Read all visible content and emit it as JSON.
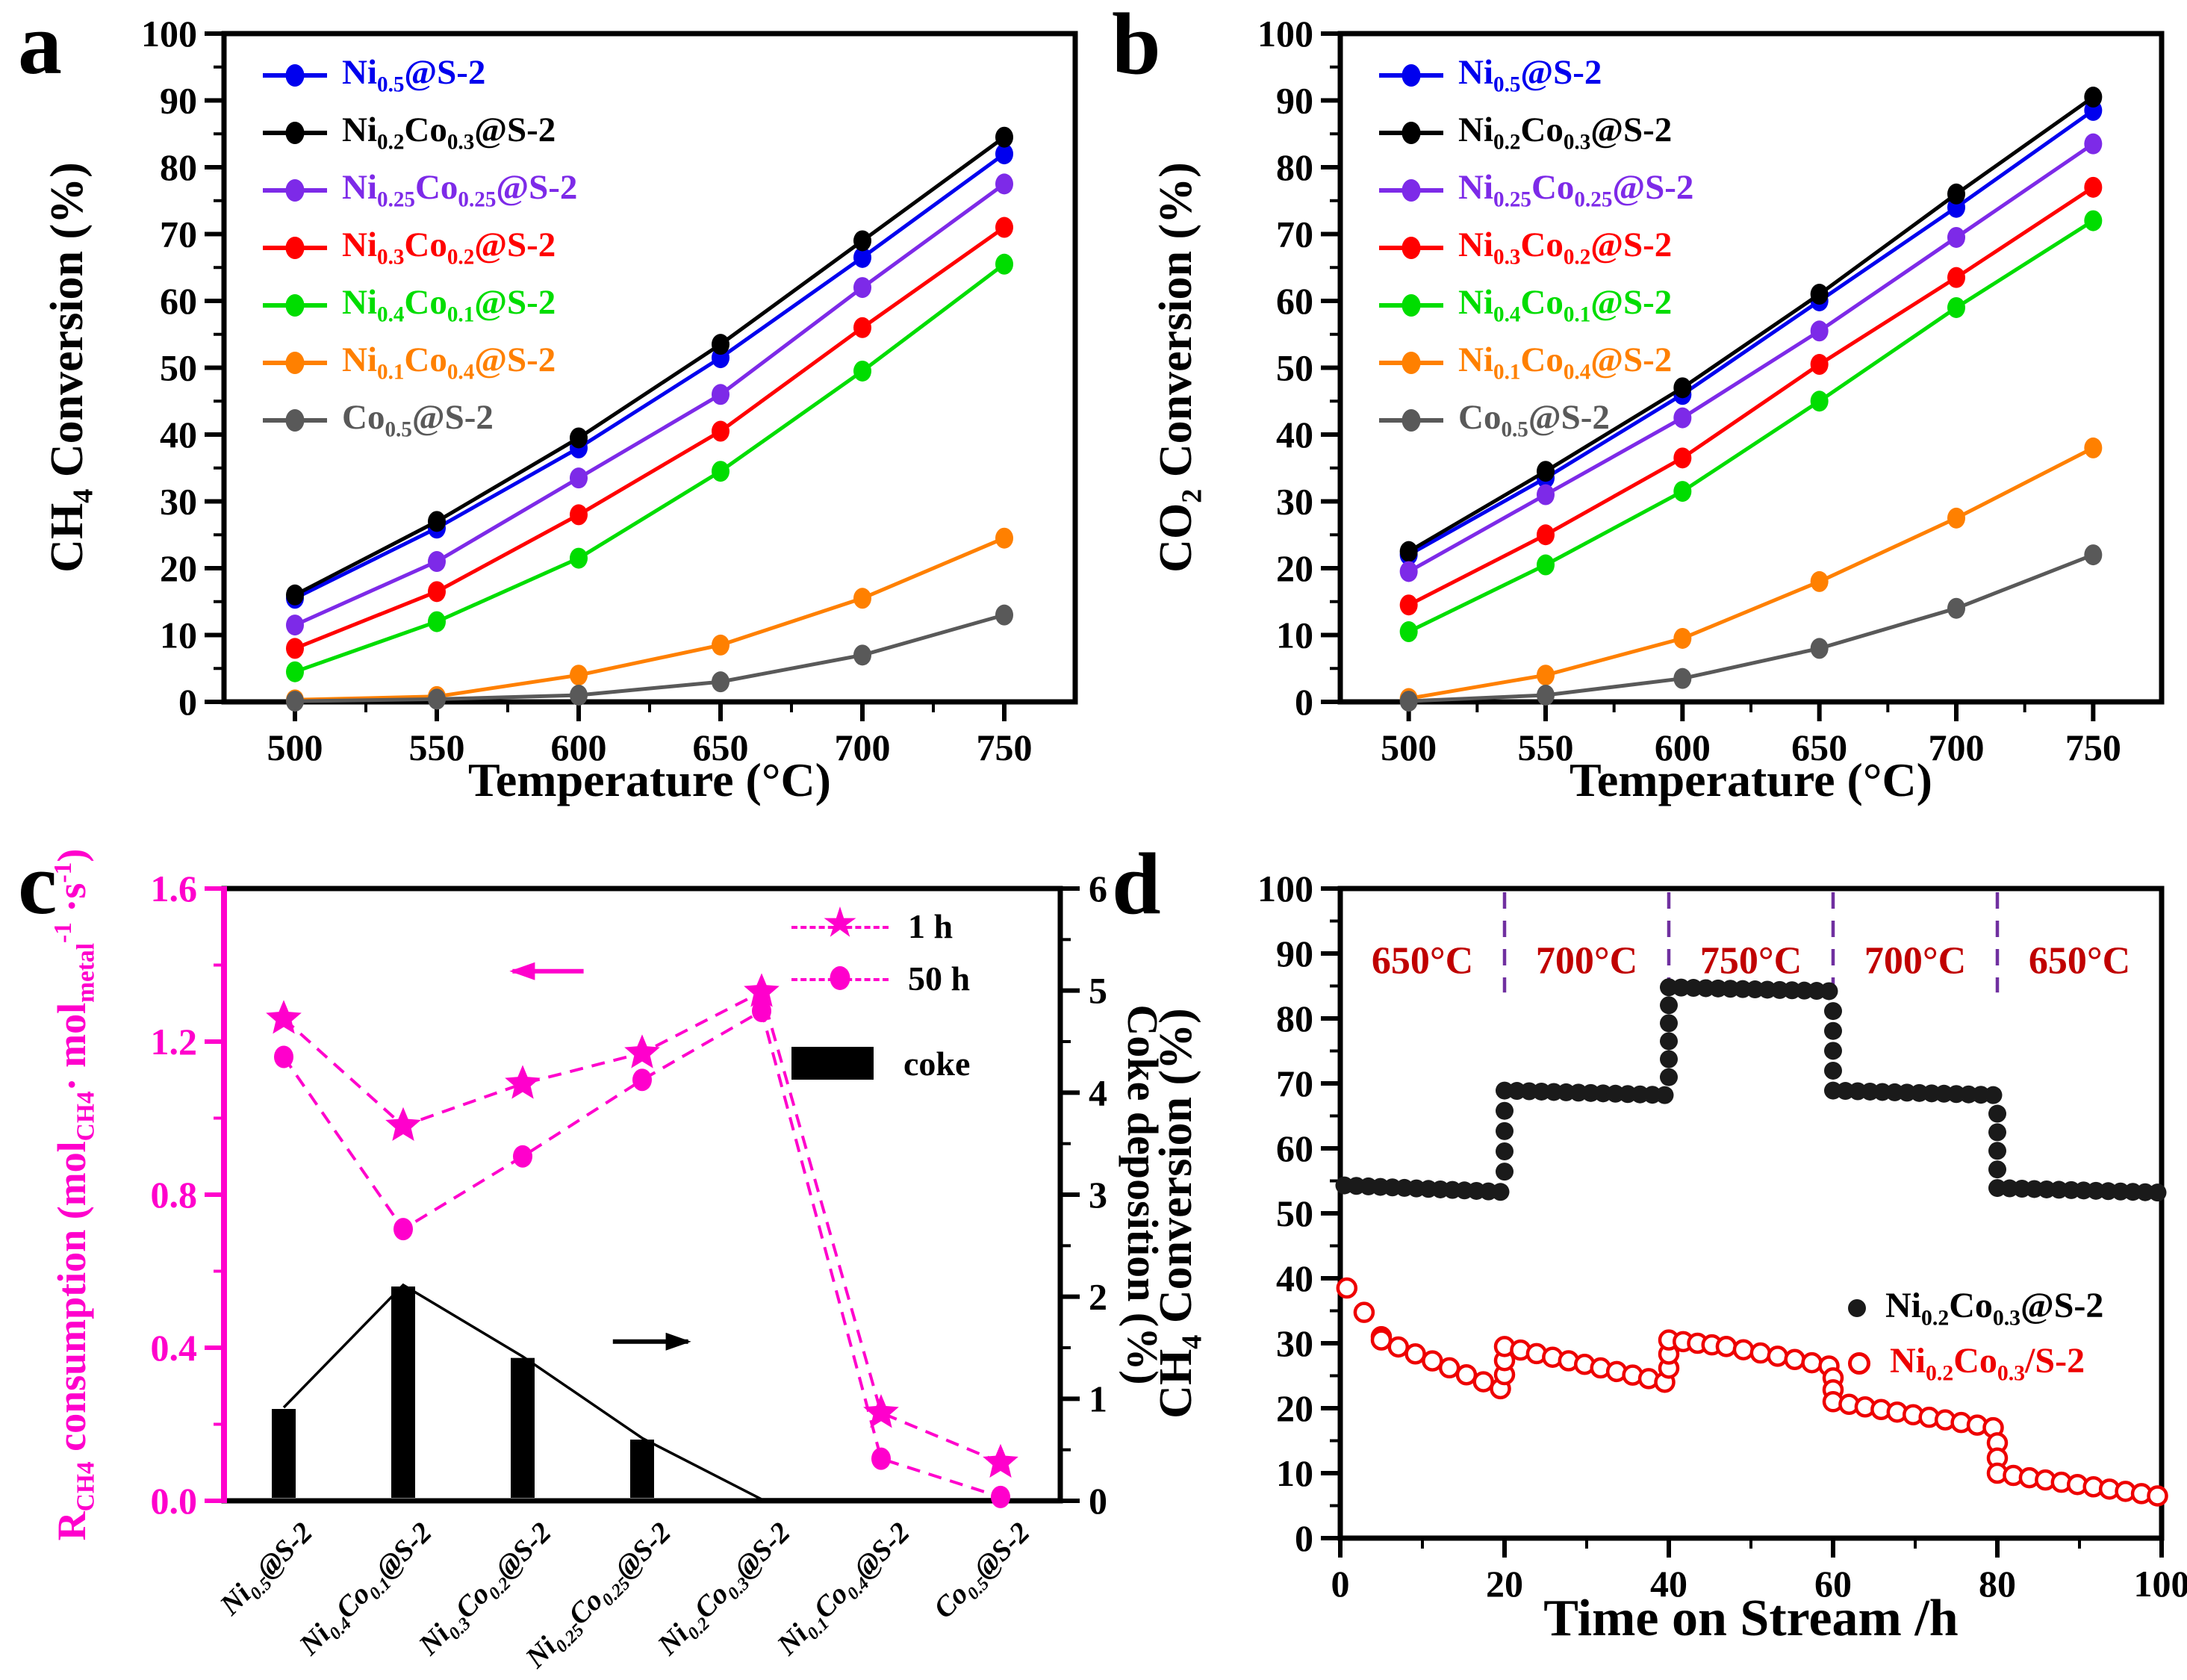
{
  "figure": {
    "background": "#FFFFFF"
  },
  "panels": {
    "a": {
      "letter": "a",
      "ylabel": "CH_{4} Conversion (%)",
      "xlabel": "Temperature (°C)"
    },
    "b": {
      "letter": "b",
      "ylabel": "CO_{2} Conversion (%)",
      "xlabel": "Temperature (°C)"
    },
    "c": {
      "letter": "c",
      "ylabel": "R_{CH4} consumption (mol_{CH4}· mol_{metal}^{-1} ·s^{-1})",
      "ylabel_right": "Coke deposition (%)"
    },
    "d": {
      "letter": "d",
      "ylabel": "CH_{4} Conversion (%)",
      "xlabel": "Time on Stream /h"
    }
  },
  "colors": {
    "blue": "#0000EE",
    "black": "#000000",
    "violet": "#7D2AE8",
    "red": "#FF0000",
    "green": "#00DD00",
    "orange": "#FF8000",
    "gray": "#595959",
    "magenta": "#FF00CC",
    "dark_red_text": "#C00000",
    "divider_purple": "#7030A0",
    "scatter_black": "#1A1A1A",
    "scatter_red": "#EE0000"
  },
  "chart_data": [
    {
      "id": "a",
      "type": "line",
      "title": "",
      "xlabel": "Temperature (°C)",
      "ylabel": "CH4 Conversion (%)",
      "x": [
        500,
        550,
        600,
        650,
        700,
        750
      ],
      "xlim": [
        475,
        775
      ],
      "ylim": [
        0,
        100
      ],
      "xticks": [
        500,
        550,
        600,
        650,
        700,
        750
      ],
      "yticks": [
        0,
        10,
        20,
        30,
        40,
        50,
        60,
        70,
        80,
        90,
        100
      ],
      "grid": false,
      "legend_position": "top-left",
      "series": [
        {
          "name": "Ni_{0.5}@S-2",
          "color": "#0000EE",
          "values": [
            15.5,
            26,
            38,
            51.5,
            66.5,
            82
          ]
        },
        {
          "name": "Ni_{0.2}Co_{0.3}@S-2",
          "color": "#000000",
          "values": [
            16,
            27,
            39.5,
            53.5,
            69,
            84.5
          ]
        },
        {
          "name": "Ni_{0.25}Co_{0.25}@S-2",
          "color": "#7D2AE8",
          "values": [
            11.5,
            21,
            33.5,
            46,
            62,
            77.5
          ]
        },
        {
          "name": "Ni_{0.3}Co_{0.2}@S-2",
          "color": "#FF0000",
          "values": [
            8,
            16.5,
            28,
            40.5,
            56,
            71
          ]
        },
        {
          "name": "Ni_{0.4}Co_{0.1}@S-2",
          "color": "#00DD00",
          "values": [
            4.5,
            12,
            21.5,
            34.5,
            49.5,
            65.5
          ]
        },
        {
          "name": "Ni_{0.1}Co_{0.4}@S-2",
          "color": "#FF8000",
          "values": [
            0.3,
            0.8,
            4,
            8.5,
            15.5,
            24.5
          ]
        },
        {
          "name": "Co_{0.5}@S-2",
          "color": "#595959",
          "values": [
            0.1,
            0.4,
            1,
            3,
            7,
            13
          ]
        }
      ]
    },
    {
      "id": "b",
      "type": "line",
      "title": "",
      "xlabel": "Temperature (°C)",
      "ylabel": "CO2 Conversion (%)",
      "x": [
        500,
        550,
        600,
        650,
        700,
        750
      ],
      "xlim": [
        475,
        775
      ],
      "ylim": [
        0,
        100
      ],
      "xticks": [
        500,
        550,
        600,
        650,
        700,
        750
      ],
      "yticks": [
        0,
        10,
        20,
        30,
        40,
        50,
        60,
        70,
        80,
        90,
        100
      ],
      "grid": false,
      "legend_position": "top-left",
      "series": [
        {
          "name": "Ni_{0.5}@S-2",
          "color": "#0000EE",
          "values": [
            22,
            33.5,
            46,
            60,
            74,
            88.5
          ]
        },
        {
          "name": "Ni_{0.2}Co_{0.3}@S-2",
          "color": "#000000",
          "values": [
            22.5,
            34.5,
            47,
            61,
            76,
            90.5
          ]
        },
        {
          "name": "Ni_{0.25}Co_{0.25}@S-2",
          "color": "#7D2AE8",
          "values": [
            19.5,
            31,
            42.5,
            55.5,
            69.5,
            83.5
          ]
        },
        {
          "name": "Ni_{0.3}Co_{0.2}@S-2",
          "color": "#FF0000",
          "values": [
            14.5,
            25,
            36.5,
            50.5,
            63.5,
            77
          ]
        },
        {
          "name": "Ni_{0.4}Co_{0.1}@S-2",
          "color": "#00DD00",
          "values": [
            10.5,
            20.5,
            31.5,
            45,
            59,
            72
          ]
        },
        {
          "name": "Ni_{0.1}Co_{0.4}@S-2",
          "color": "#FF8000",
          "values": [
            0.5,
            4,
            9.5,
            18,
            27.5,
            38
          ]
        },
        {
          "name": "Co_{0.5}@S-2",
          "color": "#595959",
          "values": [
            0.1,
            1,
            3.5,
            8,
            14,
            22
          ]
        }
      ]
    },
    {
      "id": "c",
      "type": "mixed-bar-line",
      "categories": [
        "Ni_{0.5}@S-2",
        "Ni_{0.4}Co_{0.1}@S-2",
        "Ni_{0.3}Co_{0.2}@S-2",
        "Ni_{0.25}Co_{0.25}@S-2",
        "Ni_{0.2}Co_{0.3}@S-2",
        "Ni_{0.1}Co_{0.4}@S-2",
        "Co_{0.5}@S-2"
      ],
      "left_axis": {
        "ylim": [
          0,
          1.6
        ],
        "ticks": [
          0.0,
          0.4,
          0.8,
          1.2,
          1.6
        ],
        "color": "#FF00CC"
      },
      "right_axis": {
        "ylim": [
          0,
          6
        ],
        "ticks": [
          0,
          1,
          2,
          3,
          4,
          5,
          6
        ],
        "color": "#000000"
      },
      "series": [
        {
          "name": "1 h",
          "marker": "star",
          "axis": "left",
          "color": "#FF00CC",
          "values": [
            1.26,
            0.98,
            1.09,
            1.17,
            1.33,
            0.23,
            0.1
          ]
        },
        {
          "name": "50 h",
          "marker": "circle",
          "axis": "left",
          "color": "#FF00CC",
          "values": [
            1.16,
            0.71,
            0.9,
            1.1,
            1.28,
            0.11,
            0.01
          ]
        }
      ],
      "bars": {
        "name": "coke",
        "axis": "right",
        "color": "#000000",
        "values": [
          0.9,
          2.1,
          1.4,
          0.6,
          0,
          0,
          0
        ]
      },
      "legend": [
        "1 h",
        "50 h",
        "coke"
      ]
    },
    {
      "id": "d",
      "type": "scatter-step",
      "xlabel": "Time on Stream /h",
      "ylabel": "CH4 Conversion (%)",
      "xlim": [
        0,
        100
      ],
      "ylim": [
        0,
        100
      ],
      "xticks": [
        0,
        20,
        40,
        60,
        80,
        100
      ],
      "yticks": [
        0,
        10,
        20,
        30,
        40,
        50,
        60,
        70,
        80,
        90,
        100
      ],
      "dividers": [
        20,
        40,
        60,
        80
      ],
      "regions": [
        {
          "label": "650°C",
          "x": 10
        },
        {
          "label": "700°C",
          "x": 30
        },
        {
          "label": "750°C",
          "x": 50
        },
        {
          "label": "700°C",
          "x": 70
        },
        {
          "label": "650°C",
          "x": 90
        }
      ],
      "series": [
        {
          "name": "Ni_{0.2}Co_{0.3}@S-2",
          "marker": "filled",
          "color": "#1A1A1A",
          "plateaus": [
            [
              0.5,
              19.5,
              54.3,
              53.3
            ],
            [
              20,
              39.5,
              68.9,
              68.2
            ],
            [
              40,
              59.5,
              84.8,
              84.2
            ],
            [
              60,
              79.5,
              68.9,
              68.2
            ],
            [
              80,
              99.5,
              53.9,
              53.2
            ]
          ]
        },
        {
          "name": "Ni_{0.2}Co_{0.3}/S-2",
          "marker": "open",
          "color": "#EE0000",
          "plateaus": [
            [
              0.8,
              5,
              38.5,
              31
            ],
            [
              5,
              19.5,
              30.5,
              23
            ],
            [
              20,
              39.5,
              29.5,
              24
            ],
            [
              40,
              47,
              30.5,
              29.5
            ],
            [
              47,
              59.5,
              29.5,
              26.5
            ],
            [
              60,
              79.5,
              21,
              17
            ],
            [
              80,
              99.5,
              10,
              6.5
            ]
          ]
        }
      ]
    }
  ]
}
